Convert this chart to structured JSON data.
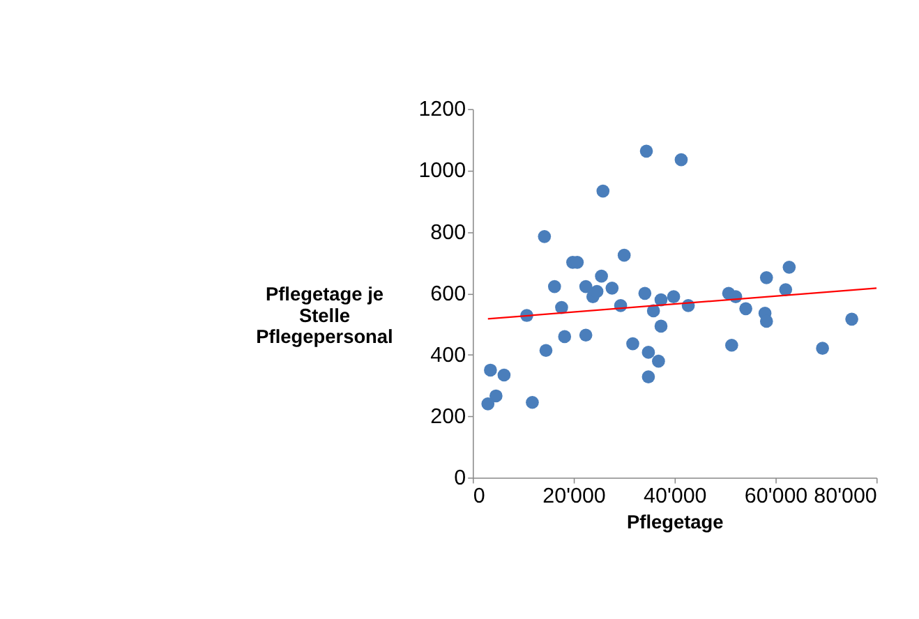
{
  "chart_data": {
    "type": "scatter",
    "xlabel": "Pflegetage",
    "ylabel": "Pflegetage je\nStelle\nPflegepersonal",
    "xlim": [
      0,
      80000
    ],
    "xticks": [
      0,
      {
        "value": 20000,
        "label": "20'000"
      },
      {
        "value": 40000,
        "label": "40'000"
      },
      {
        "value": 60000,
        "label": "60'000"
      },
      {
        "value": 80000,
        "label": "80'000"
      }
    ],
    "ylim": [
      0,
      1200
    ],
    "yticks": [
      0,
      200,
      400,
      600,
      800,
      1000,
      1200
    ],
    "grid": false,
    "series": [
      {
        "marker": "circle",
        "color": "#4a7ebb",
        "x": [
          3500,
          6200,
          4600,
          3000,
          11800,
          10700,
          14200,
          14500,
          16200,
          17600,
          18200,
          19800,
          20700,
          22400,
          22400,
          23800,
          24600,
          25500,
          25800,
          27600,
          29300,
          30000,
          31700,
          34100,
          34400,
          34800,
          34800,
          35800,
          36800,
          37300,
          37300,
          39800,
          41300,
          42700,
          50700,
          52100,
          51300,
          54100,
          58200,
          57900,
          58200,
          62700,
          62000,
          69300,
          75100
        ],
        "values": [
          350,
          334,
          266,
          240,
          245,
          528,
          785,
          414,
          622,
          554,
          459,
          701,
          701,
          622,
          464,
          589,
          606,
          656,
          933,
          617,
          560,
          724,
          436,
          600,
          1063,
          408,
          328,
          543,
          379,
          493,
          579,
          589,
          1035,
          560,
          600,
          589,
          431,
          550,
          651,
          535,
          509,
          685,
          612,
          421,
          516
        ]
      },
      {
        "type": "line",
        "marker": "none",
        "color": "#ff0000",
        "x": [
          3000,
          80000
        ],
        "values": [
          517,
          617
        ]
      }
    ]
  }
}
